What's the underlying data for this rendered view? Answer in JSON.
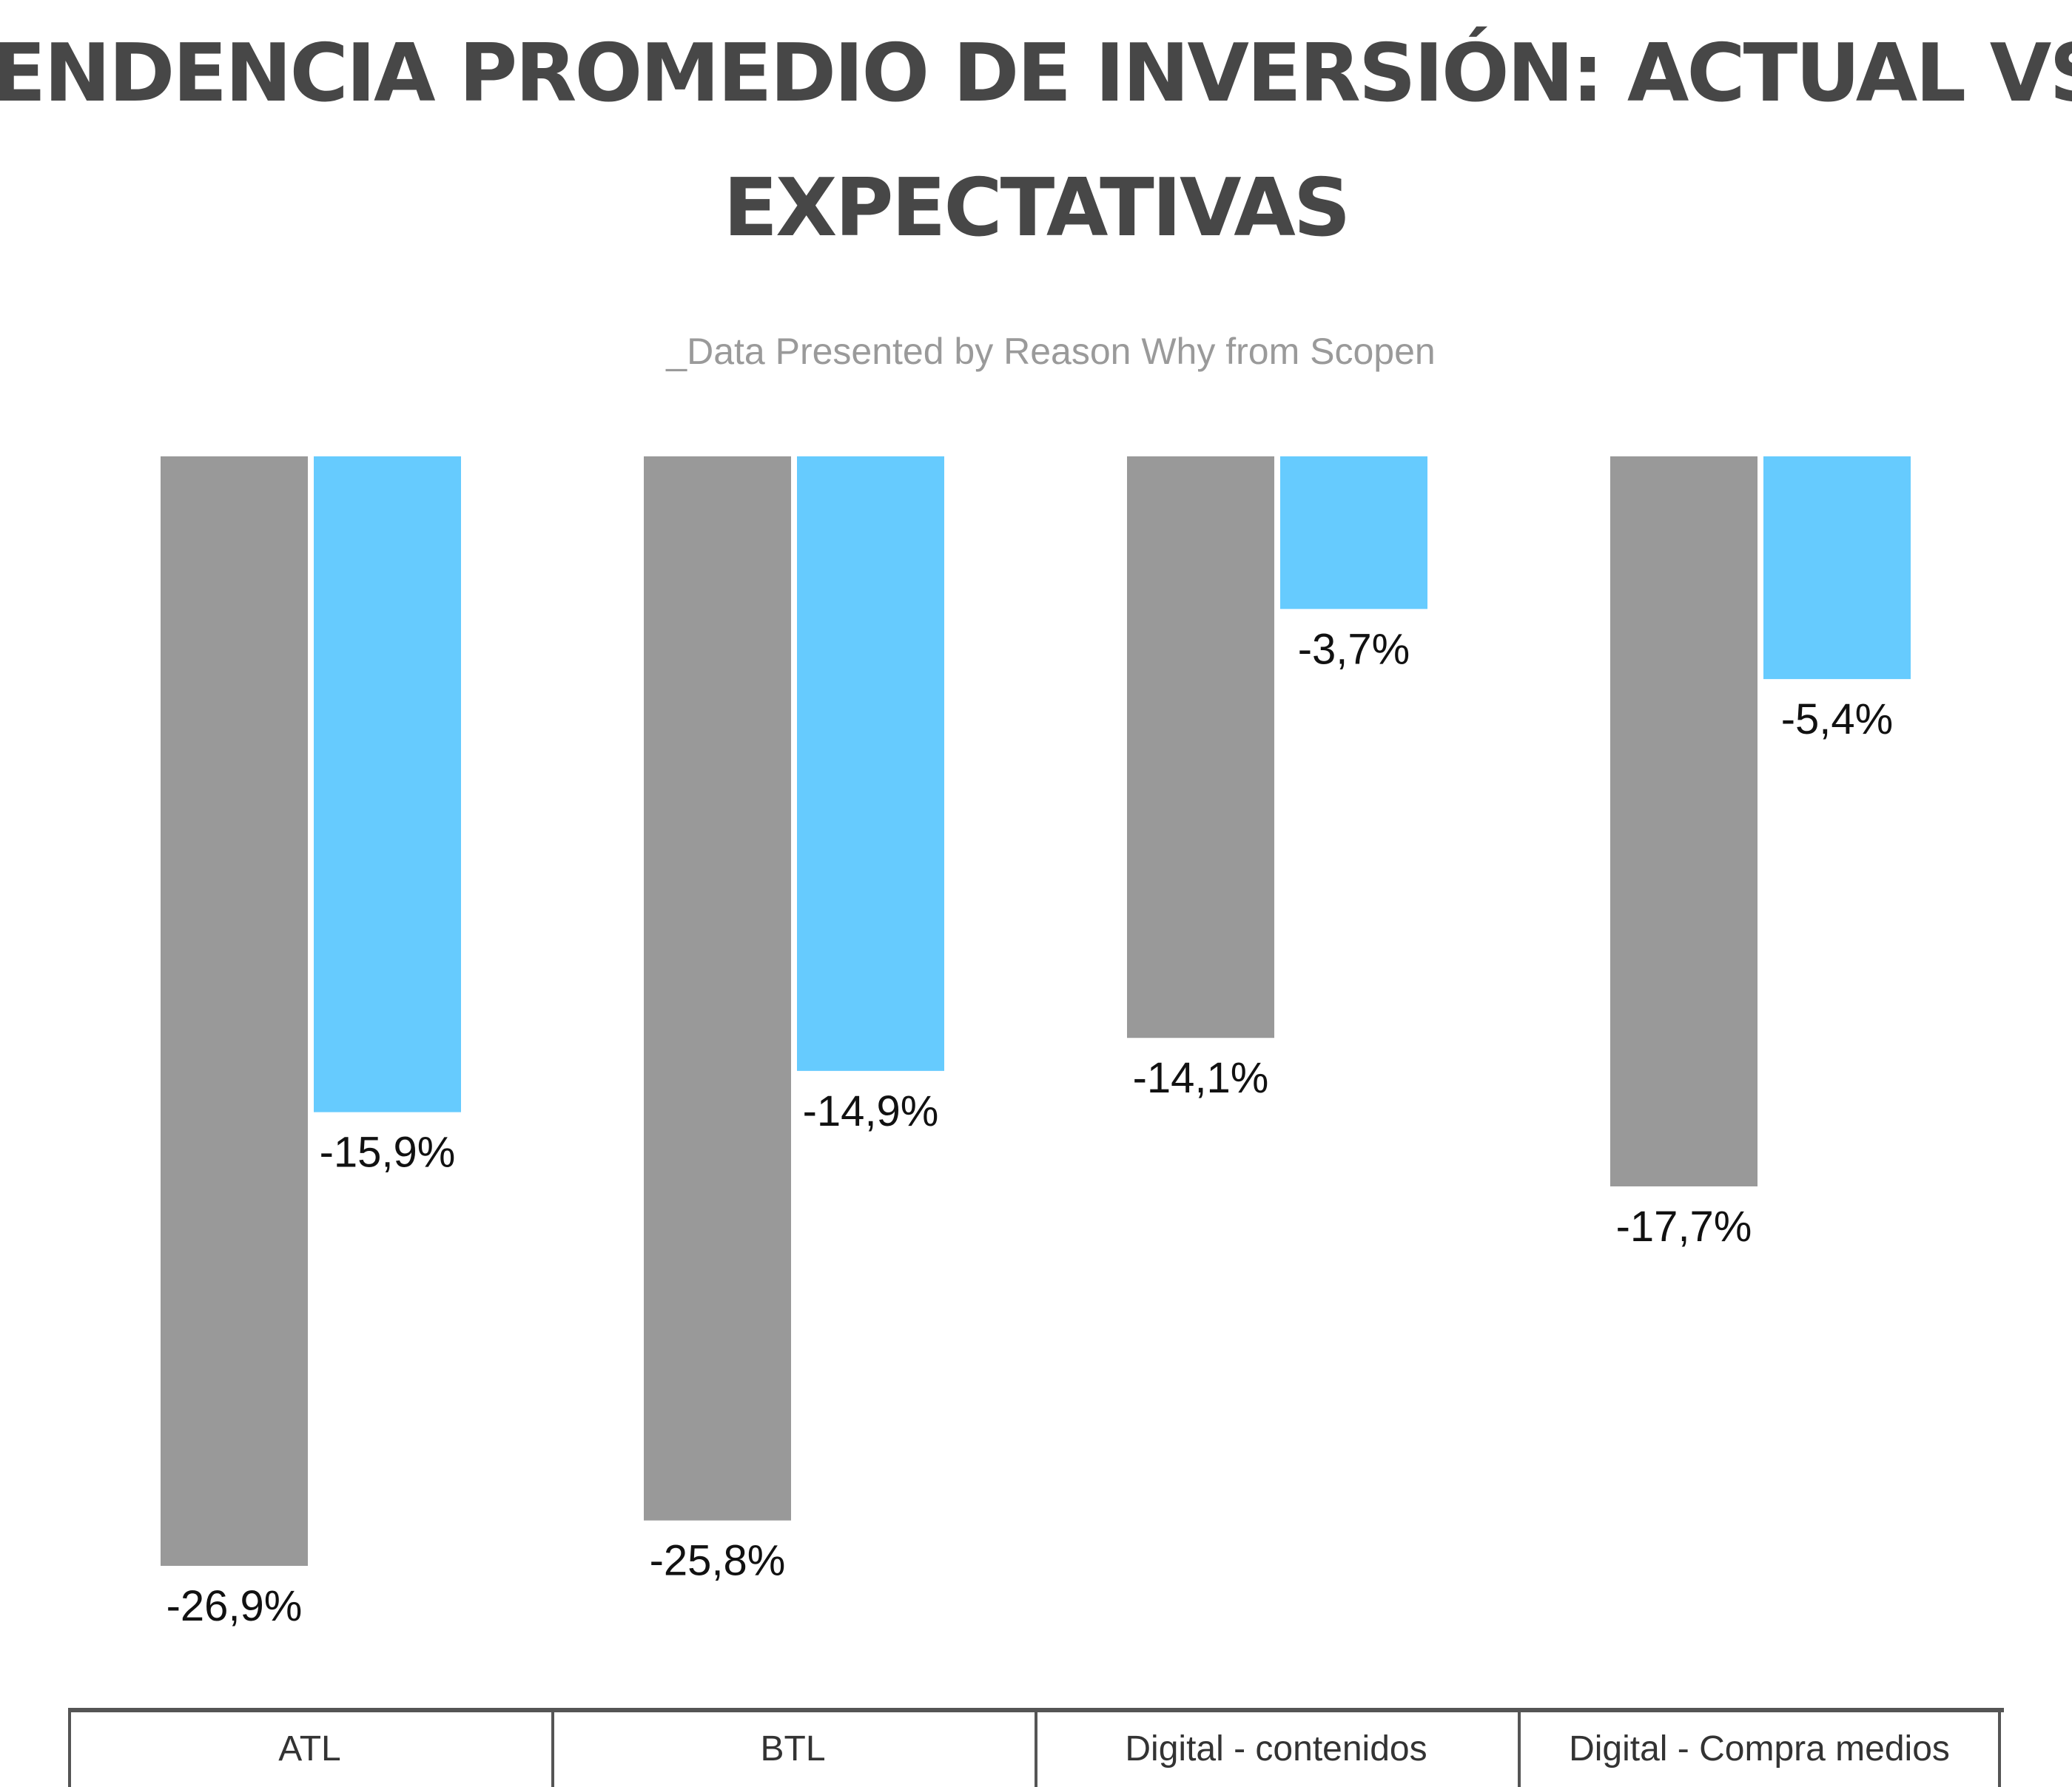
{
  "chart_data": {
    "type": "bar",
    "title": "TENDENCIA PROMEDIO DE INVERSIÓN: ACTUAL VS. EXPECTATIVAS",
    "title_lines": [
      "TENDENCIA PROMEDIO DE INVERSIÓN: ACTUAL VS.",
      "EXPECTATIVAS"
    ],
    "subtitle": "_Data Presented by Reason Why from Scopen",
    "categories": [
      "ATL",
      "BTL",
      "Digital - contenidos",
      "Digital - Compra medios"
    ],
    "series": [
      {
        "color": "#999999",
        "values": [
          -26.9,
          -25.8,
          -14.1,
          -17.7
        ],
        "labels": [
          "-26,9%",
          "-25,8%",
          "-14,1%",
          "-17,7%"
        ]
      },
      {
        "color": "#66cbfe",
        "values": [
          -15.9,
          -14.9,
          -3.7,
          -5.4
        ],
        "labels": [
          "-15,9%",
          "-14,9%",
          "-3,7%",
          "-5,4%"
        ]
      }
    ],
    "ylim": [
      -26.9,
      0
    ],
    "grid": false,
    "legend": "none",
    "xlabel": "",
    "ylabel": ""
  }
}
